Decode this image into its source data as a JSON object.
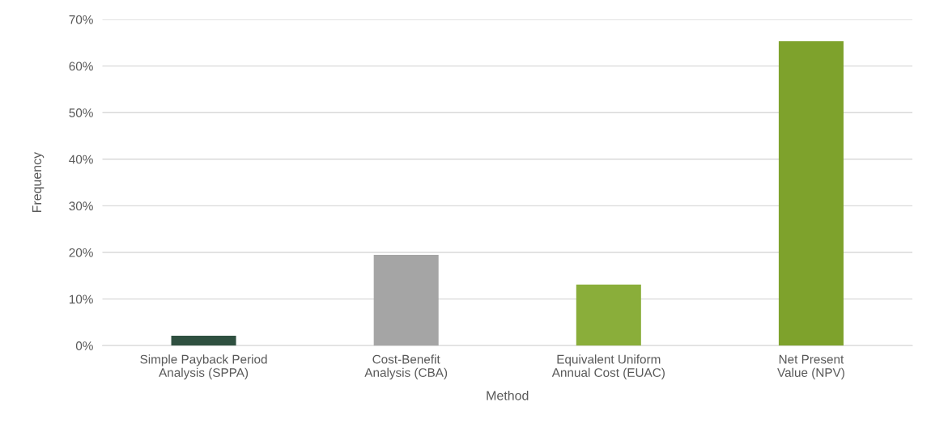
{
  "chart_data": {
    "type": "bar",
    "xlabel": "Method",
    "ylabel": "Frequency",
    "categories": [
      "Simple Payback Period Analysis (SPPA)",
      "Cost-Benefit Analysis (CBA)",
      "Equivalent Uniform Annual Cost (EUAC)",
      "Net Present Value (NPV)"
    ],
    "values": [
      2.1,
      19.5,
      13.1,
      65.3
    ],
    "colors": [
      "#2f5040",
      "#a5a5a5",
      "#8aae3a",
      "#7ea22c"
    ],
    "ylim": [
      0,
      70
    ],
    "yticks": [
      {
        "value": 0,
        "label": "0%"
      },
      {
        "value": 10,
        "label": "10%"
      },
      {
        "value": 20,
        "label": "20%"
      },
      {
        "value": 30,
        "label": "30%"
      },
      {
        "value": 40,
        "label": "40%"
      },
      {
        "value": 50,
        "label": "50%"
      },
      {
        "value": 60,
        "label": "60%"
      },
      {
        "value": 70,
        "label": "70%"
      }
    ],
    "grid": "y"
  }
}
